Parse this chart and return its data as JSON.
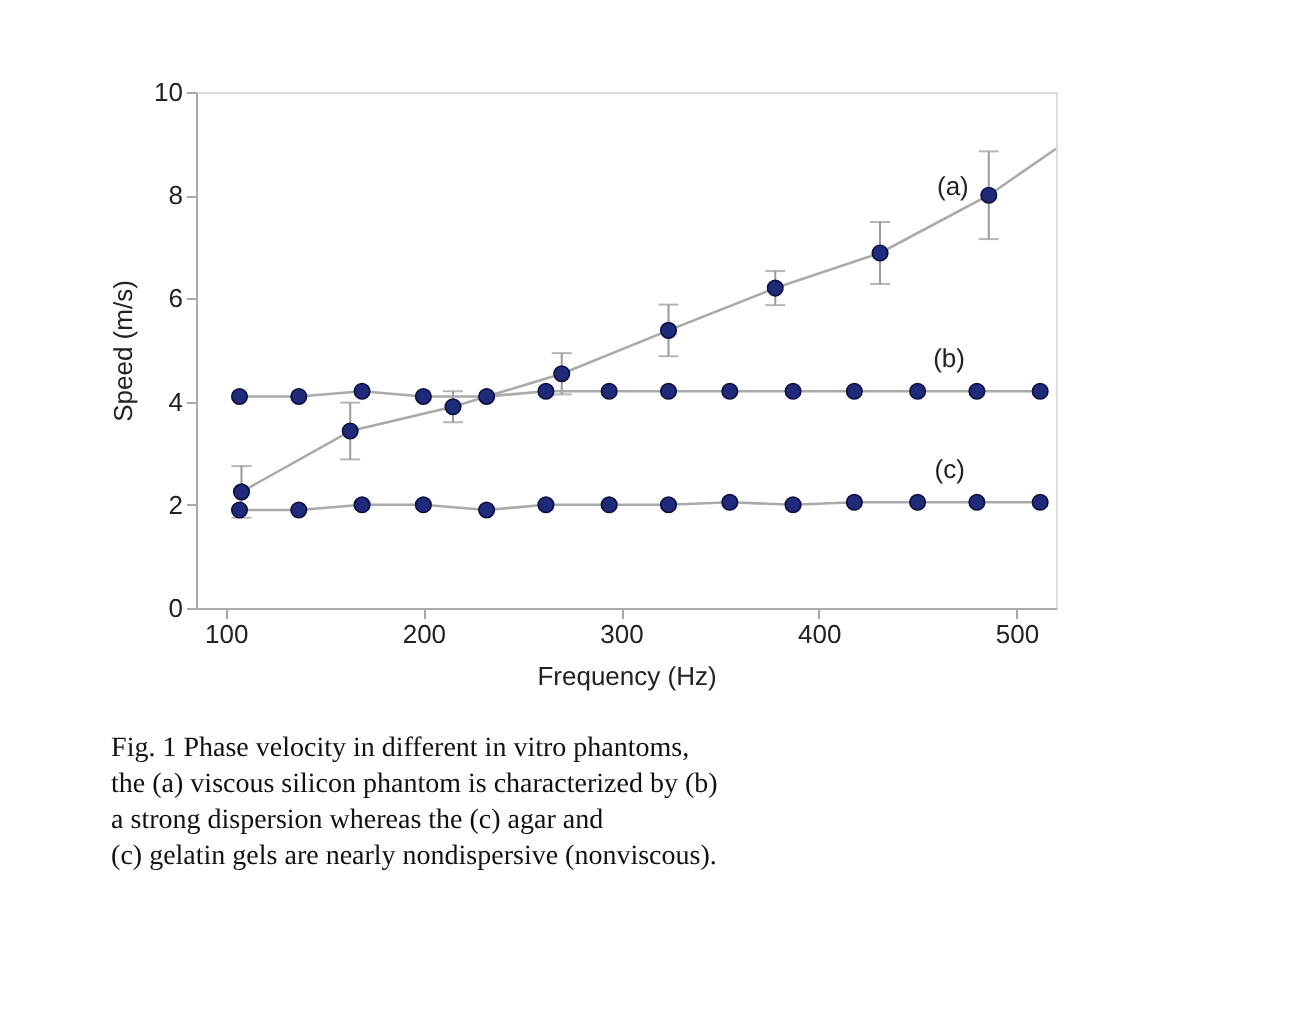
{
  "chart_data": {
    "type": "scatter",
    "xlabel": "Frequency (Hz)",
    "ylabel": "Speed (m/s)",
    "xlim": [
      85,
      520
    ],
    "xticks": [
      100,
      200,
      300,
      400,
      500
    ],
    "ylim": [
      0,
      10
    ],
    "yticks": [
      0,
      2,
      4,
      6,
      8,
      10
    ],
    "grid": false,
    "marker": "circle",
    "series": [
      {
        "type": "line",
        "color": "#aaaaaa",
        "x": [
          108,
          163,
          215,
          270,
          324,
          378,
          431,
          486,
          520
        ],
        "values": [
          2.25,
          3.43,
          3.9,
          4.54,
          5.38,
          6.2,
          6.88,
          8.0,
          8.9
        ],
        "marker": "none"
      },
      {
        "name": "(a)",
        "color": "#1f2a7a",
        "x": [
          108,
          163,
          215,
          270,
          324,
          378,
          431,
          486
        ],
        "values": [
          2.25,
          3.43,
          3.9,
          4.54,
          5.38,
          6.2,
          6.88,
          8.0
        ],
        "errors": [
          0.5,
          0.55,
          0.3,
          0.4,
          0.5,
          0.33,
          0.6,
          0.85
        ]
      },
      {
        "name": "(b)",
        "type": "line",
        "color": "#1f2a7a",
        "x": [
          107,
          137,
          169,
          200,
          232,
          262,
          294,
          324,
          355,
          387,
          418,
          450,
          480,
          512
        ],
        "values": [
          4.1,
          4.1,
          4.2,
          4.1,
          4.1,
          4.2,
          4.2,
          4.2,
          4.2,
          4.2,
          4.2,
          4.2,
          4.2,
          4.2
        ]
      },
      {
        "name": "(c)",
        "type": "line",
        "color": "#1f2a7a",
        "x": [
          107,
          137,
          169,
          200,
          232,
          262,
          294,
          324,
          355,
          387,
          418,
          450,
          480,
          512
        ],
        "values": [
          1.9,
          1.9,
          2.0,
          2.0,
          1.9,
          2.0,
          2.0,
          2.0,
          2.05,
          2.0,
          2.05,
          2.05,
          2.05,
          2.05
        ]
      }
    ],
    "annotations": [
      "Fig. 1 Phase velocity in different in vitro phantoms,",
      "the (a) viscous silicon phantom is characterized by (b)",
      "a strong dispersion whereas the (c) agar and",
      "(c) gelatin gels are nearly nondispersive (nonviscous)."
    ]
  }
}
